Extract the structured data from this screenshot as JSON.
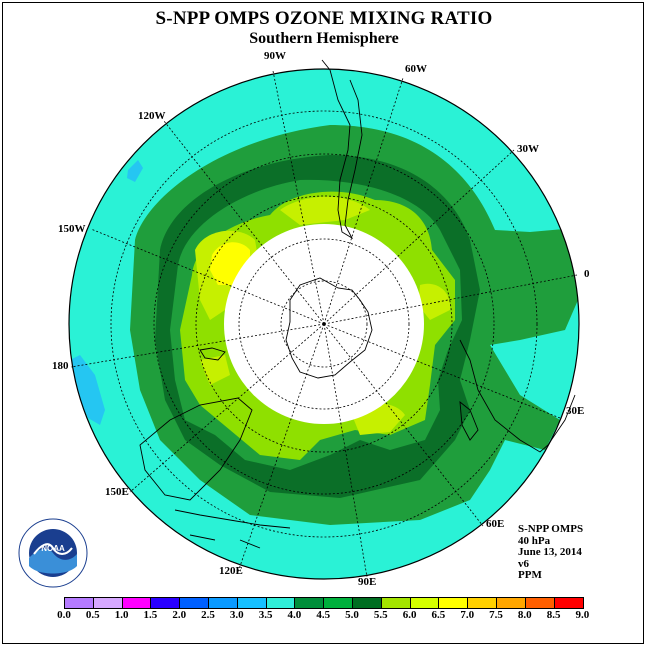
{
  "title": "S-NPP OMPS OZONE MIXING RATIO",
  "subtitle": "Southern Hemisphere",
  "longitude_labels": [
    "90W",
    "60W",
    "120W",
    "30W",
    "150W",
    "0",
    "180",
    "30E",
    "150E",
    "60E",
    "120E",
    "90E"
  ],
  "info": {
    "product": "S-NPP OMPS",
    "level": "40 hPa",
    "date": "June 13, 2014",
    "version": "v6",
    "units": "PPM"
  },
  "logo_text": "NOAA",
  "colorbar": {
    "ticks": [
      "0.0",
      "0.5",
      "1.0",
      "1.5",
      "2.0",
      "2.5",
      "3.0",
      "3.5",
      "4.0",
      "4.5",
      "5.0",
      "5.5",
      "6.0",
      "6.5",
      "7.0",
      "7.5",
      "8.0",
      "8.5",
      "9.0"
    ],
    "colors": [
      "#b57bff",
      "#d6a8ff",
      "#ff00ff",
      "#2a00ff",
      "#0060ff",
      "#0a9aff",
      "#16c0ff",
      "#30eed8",
      "#008f3a",
      "#00b03c",
      "#006e21",
      "#a3e400",
      "#d4ff00",
      "#ffff00",
      "#ffd000",
      "#ffa600",
      "#ff5f00",
      "#ff0000",
      "#8b5a2b"
    ]
  },
  "colors": {
    "background_cyan": "#2af2d6",
    "ring_light_green": "#1f9e3c",
    "ring_dark_green": "#0b6f28",
    "lime": "#8fe000",
    "yellow_green": "#c6f000",
    "yellow": "#ffff00",
    "low_blue": "#25c6f2",
    "polar_night": "#ffffff"
  }
}
